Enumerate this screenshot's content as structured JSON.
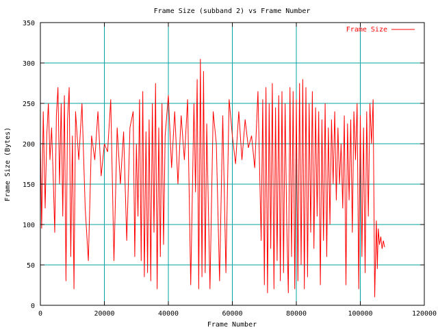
{
  "chart_data": {
    "type": "line",
    "title": "Frame Size (subband 2) vs Frame Number",
    "xlabel": "Frame Number",
    "ylabel": "Frame Size (Bytes)",
    "xlim": [
      0,
      120000
    ],
    "ylim": [
      0,
      350
    ],
    "x_ticks": [
      0,
      20000,
      40000,
      60000,
      80000,
      100000,
      120000
    ],
    "y_ticks": [
      0,
      50,
      100,
      150,
      200,
      250,
      300,
      350
    ],
    "grid": true,
    "legend_position": "top-right",
    "series": [
      {
        "name": "Frame Size",
        "color": "#ff0000",
        "x": [
          0,
          400,
          900,
          1500,
          2000,
          2500,
          3000,
          3500,
          4000,
          4500,
          5000,
          5500,
          6000,
          6500,
          7000,
          7500,
          8000,
          8500,
          9000,
          9500,
          10000,
          10500,
          11000,
          12000,
          13000,
          14000,
          15000,
          16000,
          17000,
          18000,
          19000,
          20000,
          21000,
          22000,
          23000,
          24000,
          25000,
          26000,
          27000,
          28000,
          29000,
          29500,
          30000,
          30500,
          31000,
          31500,
          32000,
          32500,
          33000,
          33500,
          34000,
          34500,
          35000,
          35500,
          36000,
          36500,
          37000,
          37500,
          38000,
          38500,
          39000,
          40000,
          41000,
          42000,
          43000,
          44000,
          45000,
          46000,
          47000,
          48000,
          48500,
          49000,
          49500,
          50000,
          50500,
          51000,
          51500,
          52000,
          53000,
          54000,
          55000,
          56000,
          57000,
          58000,
          59000,
          60000,
          61000,
          62000,
          63000,
          64000,
          65000,
          66000,
          67000,
          68000,
          69000,
          69500,
          70000,
          70500,
          71000,
          71500,
          72000,
          72500,
          73000,
          73500,
          74000,
          74500,
          75000,
          75500,
          76000,
          76500,
          77000,
          77500,
          78000,
          78500,
          79000,
          79500,
          80000,
          80500,
          81000,
          81500,
          82000,
          82500,
          83000,
          83500,
          84000,
          84500,
          85000,
          85500,
          86000,
          86500,
          87000,
          87500,
          88000,
          88500,
          89000,
          89500,
          90000,
          90500,
          91000,
          91500,
          92000,
          92500,
          93000,
          93500,
          94000,
          94500,
          95000,
          95500,
          96000,
          96500,
          97000,
          97500,
          98000,
          98500,
          99000,
          99500,
          100000,
          100500,
          101000,
          101500,
          102000,
          102500,
          103000,
          103500,
          104000,
          104500,
          105000,
          105300,
          105600,
          106000,
          106400,
          106800,
          107200,
          107600
        ],
        "y": [
          205,
          95,
          240,
          120,
          210,
          250,
          180,
          220,
          160,
          90,
          235,
          270,
          150,
          250,
          110,
          260,
          30,
          230,
          270,
          60,
          210,
          20,
          240,
          180,
          250,
          120,
          55,
          210,
          180,
          240,
          160,
          200,
          190,
          255,
          55,
          220,
          150,
          215,
          80,
          220,
          240,
          60,
          200,
          110,
          255,
          55,
          265,
          35,
          215,
          40,
          230,
          30,
          250,
          90,
          275,
          20,
          220,
          60,
          250,
          75,
          210,
          260,
          170,
          240,
          150,
          235,
          180,
          255,
          25,
          250,
          140,
          280,
          20,
          305,
          35,
          290,
          40,
          225,
          20,
          240,
          200,
          30,
          235,
          40,
          255,
          210,
          175,
          240,
          180,
          230,
          195,
          210,
          170,
          265,
          80,
          255,
          25,
          270,
          15,
          250,
          70,
          275,
          20,
          245,
          55,
          260,
          30,
          265,
          40,
          250,
          100,
          15,
          270,
          60,
          265,
          20,
          255,
          30,
          275,
          50,
          280,
          20,
          270,
          35,
          250,
          90,
          265,
          70,
          245,
          110,
          240,
          25,
          230,
          80,
          250,
          60,
          220,
          100,
          230,
          150,
          240,
          130,
          220,
          150,
          200,
          120,
          235,
          25,
          225,
          130,
          230,
          90,
          240,
          180,
          250,
          20,
          235,
          60,
          220,
          40,
          240,
          110,
          250,
          200,
          255,
          10,
          105,
          45,
          95,
          75,
          85,
          70,
          80,
          72
        ]
      }
    ]
  }
}
